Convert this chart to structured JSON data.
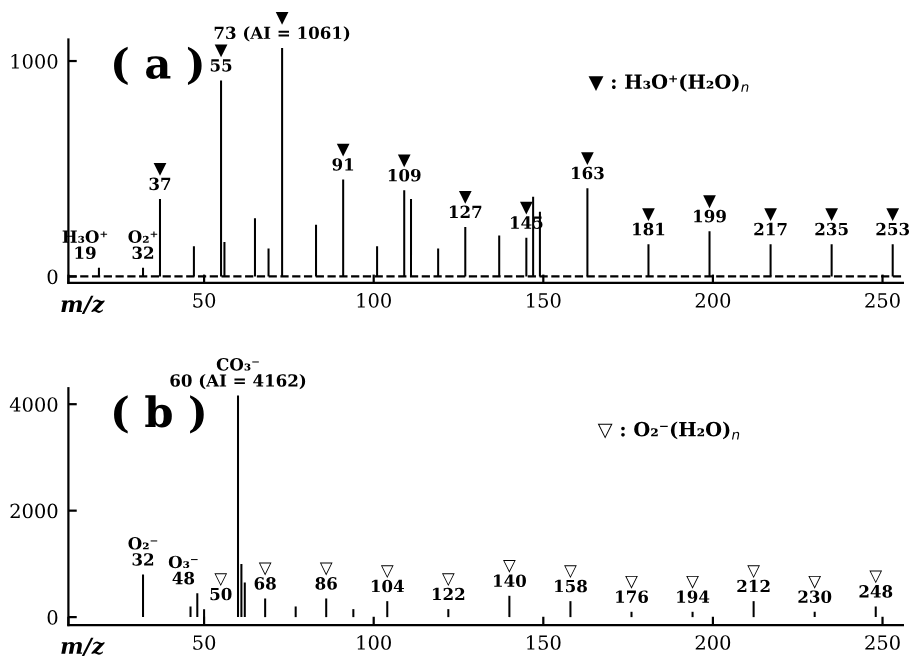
{
  "chart_data": [
    {
      "type": "bar",
      "title": "( a )",
      "xlabel": "m/z",
      "x": [
        19,
        32,
        37,
        47,
        55,
        56,
        65,
        69,
        73,
        83,
        91,
        101,
        109,
        111,
        119,
        127,
        137,
        145,
        147,
        149,
        163,
        181,
        199,
        217,
        235,
        253
      ],
      "values": [
        40,
        40,
        360,
        140,
        910,
        160,
        270,
        130,
        1061,
        240,
        450,
        140,
        400,
        360,
        130,
        230,
        190,
        180,
        370,
        300,
        410,
        150,
        210,
        150,
        150,
        150
      ],
      "color": "#000000",
      "xlim": [
        10,
        256
      ],
      "xticks": [
        {
          "value": 10,
          "label": null
        },
        {
          "value": 50,
          "label": "50"
        },
        {
          "value": 100,
          "label": "100"
        },
        {
          "value": 150,
          "label": "150"
        },
        {
          "value": 200,
          "label": "200"
        },
        {
          "value": 250,
          "label": "250"
        }
      ],
      "ylim": [
        -30,
        1100
      ],
      "yticks": [
        0,
        1000
      ],
      "ref_lines": [
        {
          "axis": "y",
          "value": 0,
          "label": null,
          "line_style": "dashed"
        }
      ],
      "annotations": [
        {
          "text": "H₃O⁺\n19",
          "x": 19,
          "y": 40
        },
        {
          "text": "O₂⁺\n32",
          "x": 32,
          "y": 40
        },
        {
          "text": "▼\n37",
          "x": 37,
          "y": 360
        },
        {
          "text": "▼\n55",
          "x": 55,
          "y": 910
        },
        {
          "text": "▼\n73 (AI = 1061)",
          "x": 73,
          "y": 1061
        },
        {
          "text": "▼\n91",
          "x": 91,
          "y": 450
        },
        {
          "text": "▼\n109",
          "x": 109,
          "y": 400
        },
        {
          "text": "▼\n127",
          "x": 127,
          "y": 230
        },
        {
          "text": "▼\n145",
          "x": 145,
          "y": 180
        },
        {
          "text": "▼\n163",
          "x": 163,
          "y": 410
        },
        {
          "text": "▼\n181",
          "x": 181,
          "y": 150
        },
        {
          "text": "▼\n199",
          "x": 199,
          "y": 210
        },
        {
          "text": "▼\n217",
          "x": 217,
          "y": 150
        },
        {
          "text": "▼\n235",
          "x": 235,
          "y": 150
        },
        {
          "text": "▼\n253",
          "x": 253,
          "y": 150
        },
        "▼ : H₃O⁺(H₂O)$_{n}$"
      ]
    },
    {
      "type": "bar",
      "title": "( b )",
      "xlabel": "m/z",
      "x": [
        32,
        46,
        48,
        50,
        60,
        61,
        62,
        68,
        77,
        86,
        94,
        104,
        122,
        140,
        158,
        176,
        194,
        212,
        230,
        248
      ],
      "values": [
        800,
        200,
        450,
        150,
        4162,
        1000,
        650,
        350,
        200,
        350,
        150,
        300,
        150,
        400,
        300,
        100,
        100,
        300,
        100,
        200
      ],
      "color": "#000000",
      "xlim": [
        10,
        256
      ],
      "xticks": [
        {
          "value": 10,
          "label": null
        },
        {
          "value": 50,
          "label": "50"
        },
        {
          "value": 100,
          "label": "100"
        },
        {
          "value": 150,
          "label": "150"
        },
        {
          "value": 200,
          "label": "200"
        },
        {
          "value": 250,
          "label": "250"
        }
      ],
      "ylim": [
        -150,
        4300
      ],
      "yticks": [
        0,
        2000,
        4000
      ],
      "annotations": [
        {
          "text": "O₂⁻\n32",
          "x": 32,
          "y": 800
        },
        {
          "text": "O₃⁻\n48",
          "x": 48,
          "y": 450
        },
        {
          "text": "▽\n50",
          "x": 50,
          "y": 150
        },
        {
          "text": "CO₃⁻\n60 (AI = 4162)",
          "x": 60,
          "y": 4162
        },
        {
          "text": "▽\n68",
          "x": 68,
          "y": 350
        },
        {
          "text": "▽\n86",
          "x": 86,
          "y": 350
        },
        {
          "text": "▽\n104",
          "x": 104,
          "y": 300
        },
        {
          "text": "▽\n122",
          "x": 122,
          "y": 150
        },
        {
          "text": "▽\n140",
          "x": 140,
          "y": 400
        },
        {
          "text": "▽\n158",
          "x": 158,
          "y": 300
        },
        {
          "text": "▽\n176",
          "x": 176,
          "y": 100
        },
        {
          "text": "▽\n194",
          "x": 194,
          "y": 100
        },
        {
          "text": "▽\n212",
          "x": 212,
          "y": 300
        },
        {
          "text": "▽\n230",
          "x": 230,
          "y": 100
        },
        {
          "text": "▽\n248",
          "x": 248,
          "y": 200
        },
        "▽ : O₂⁻(H₂O)$_{n}$"
      ]
    }
  ]
}
